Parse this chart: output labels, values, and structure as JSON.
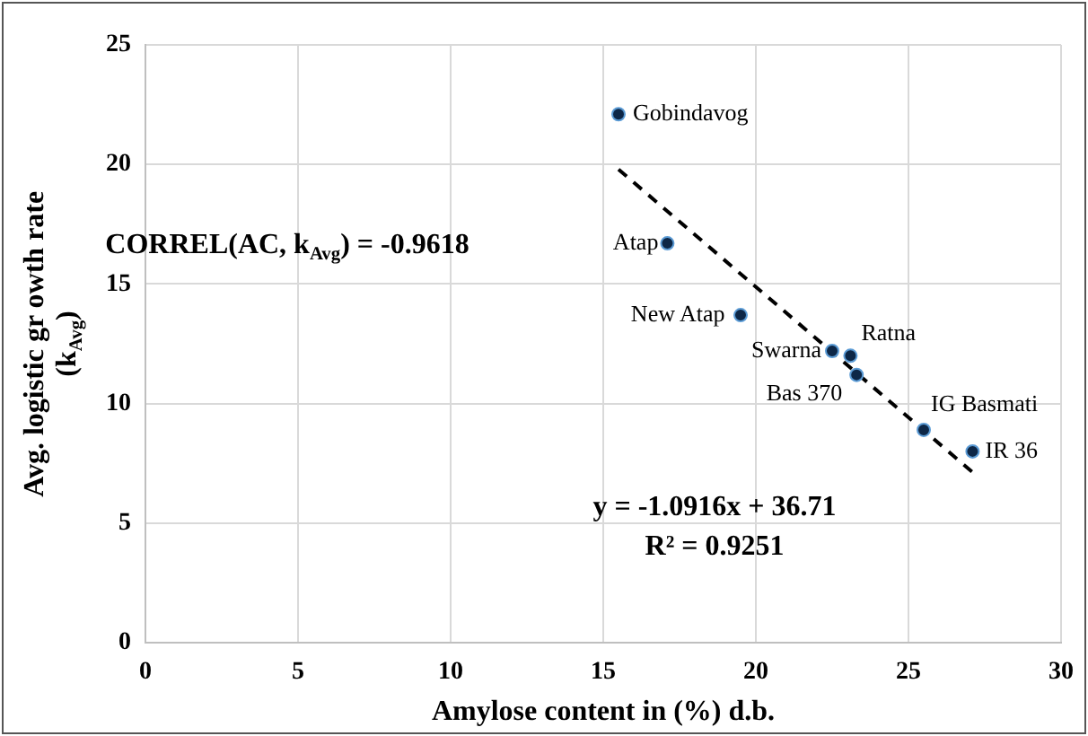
{
  "chart_data": {
    "type": "scatter",
    "xlabel": "Amylose content in (%) d.b.",
    "ylabel": "Avg. logistic gr owth rate (k$_{Avg}$)",
    "xlim": [
      0,
      30
    ],
    "xticks": [
      0,
      5,
      10,
      15,
      20,
      25,
      30
    ],
    "ylim": [
      0,
      25
    ],
    "yticks": [
      0,
      5,
      10,
      15,
      20,
      25
    ],
    "grid": true,
    "legend": false,
    "series": [
      {
        "type": "scatter",
        "color": "#0d2747",
        "marker": "circle",
        "x": [
          15.5,
          17.1,
          19.5,
          22.5,
          23.1,
          23.3,
          25.5,
          27.1
        ],
        "values": [
          22.1,
          16.7,
          13.7,
          12.2,
          12.0,
          11.2,
          8.9,
          8.0
        ]
      },
      {
        "type": "line",
        "color": "#000000",
        "marker": "none",
        "line_style": "dashed",
        "x": [
          15.5,
          27.2
        ],
        "values": [
          19.79,
          7.02
        ]
      }
    ],
    "annotations": [
      {
        "text": "Gobindavog",
        "x": 15.5,
        "y": 22.1
      },
      {
        "text": "Atap",
        "x": 17.1,
        "y": 16.7
      },
      {
        "text": "New Atap",
        "x": 19.5,
        "y": 13.7
      },
      {
        "text": "Swarna",
        "x": 22.5,
        "y": 12.2
      },
      {
        "text": "Ratna",
        "x": 23.1,
        "y": 12.0
      },
      {
        "text": "Bas 370",
        "x": 23.3,
        "y": 11.2
      },
      {
        "text": "IG Basmati",
        "x": 25.5,
        "y": 8.9
      },
      {
        "text": "IR 36",
        "x": 27.1,
        "y": 8.0
      },
      "CORREL(AC, k$_{Avg}$) = -0.9618",
      "y = -1.0916x + 36.71",
      "R² = 0.9251"
    ]
  }
}
